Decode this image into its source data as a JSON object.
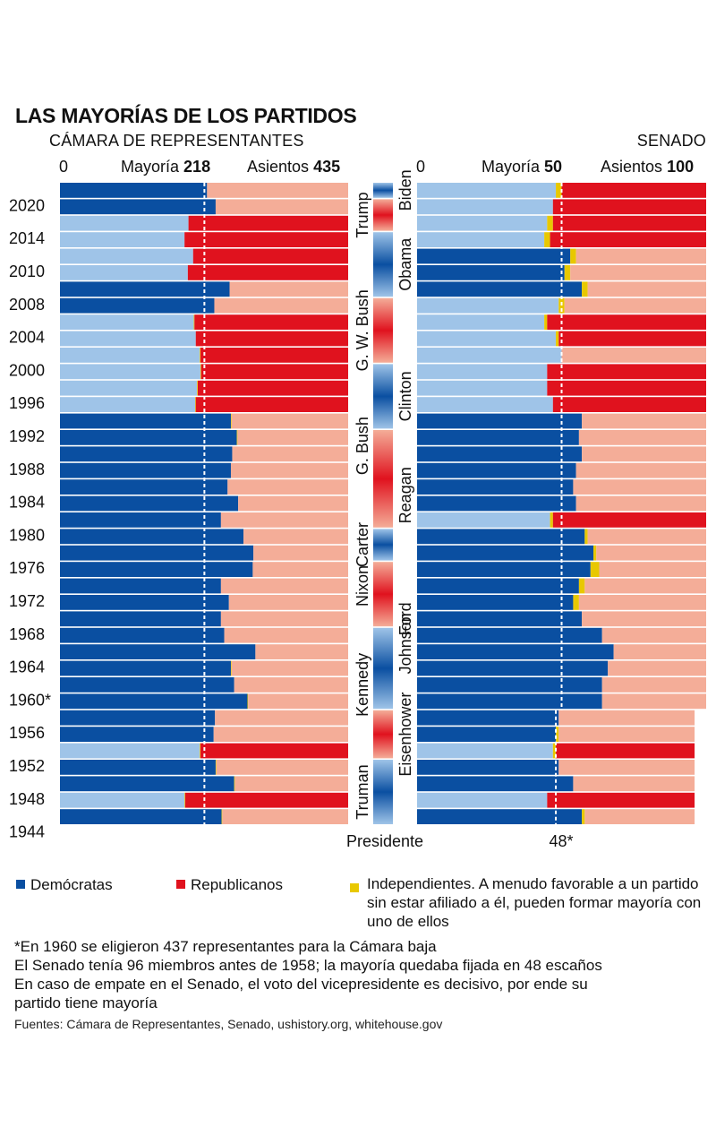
{
  "title": "LAS MAYORÍAS DE LOS PARTIDOS",
  "house": {
    "label": "CÁMARA DE REPRESENTANTES",
    "axis_zero": "0",
    "majority_label": "Mayoría",
    "majority_value": "218",
    "seats_label": "Asientos",
    "seats_value": "435"
  },
  "senate": {
    "label": "SENADO",
    "axis_zero": "0",
    "majority_label": "Mayoría",
    "majority_value": "50",
    "seats_label": "Asientos",
    "seats_value": "100",
    "old_majority_label": "48*"
  },
  "president_axis_label": "Presidente",
  "legend": {
    "dem": "Demócratas",
    "rep": "Republicanos",
    "ind": "Independientes. A menudo favorable a un partido sin estar afiliado a él, pueden formar mayoría con uno de ellos"
  },
  "notes": [
    "*En 1960 se eligieron 437 representantes para la Cámara baja",
    "El Senado tenía 96 miembros antes de 1958; la mayoría quedaba fijada en 48 escaños",
    "En caso de empate en el Senado, el voto del vicepresidente es decisivo, por ende su",
    "partido tiene mayoría"
  ],
  "sources": "Fuentes: Cámara de Representantes, Senado, ushistory.org, whitehouse.gov",
  "colors": {
    "dem_majority": "#0a4fa1",
    "dem_minority": "#9fc4e8",
    "rep_majority": "#e0121e",
    "rep_minority": "#f4ad98",
    "independent": "#e8c800",
    "dem_legend": "#0a4fa1",
    "rep_legend": "#e0121e",
    "ind_legend": "#e8c800"
  },
  "chart_data": {
    "type": "bar",
    "orientation": "horizontal-stacked",
    "title": "LAS MAYORÍAS DE LOS PARTIDOS",
    "year_labels": [
      "2020",
      "2014",
      "2010",
      "2008",
      "2004",
      "2000",
      "1996",
      "1992",
      "1988",
      "1984",
      "1980",
      "1976",
      "1972",
      "1968",
      "1964",
      "1960*",
      "1956",
      "1952",
      "1948",
      "1944"
    ],
    "year_label_rows": [
      1,
      3,
      5,
      7,
      9,
      11,
      13,
      15,
      17,
      19,
      21,
      23,
      25,
      27,
      29,
      31,
      33,
      35,
      37,
      39
    ],
    "rows": [
      {
        "house": [
          222,
          213,
          0
        ],
        "senate": [
          48,
          50,
          2
        ]
      },
      {
        "house": [
          235,
          200,
          0
        ],
        "senate": [
          47,
          53,
          0
        ]
      },
      {
        "house": [
          194,
          241,
          0
        ],
        "senate": [
          45,
          53,
          2
        ]
      },
      {
        "house": [
          188,
          247,
          0
        ],
        "senate": [
          44,
          54,
          2
        ]
      },
      {
        "house": [
          201,
          234,
          0
        ],
        "senate": [
          53,
          45,
          2
        ]
      },
      {
        "house": [
          193,
          242,
          0
        ],
        "senate": [
          51,
          47,
          2
        ]
      },
      {
        "house": [
          256,
          179,
          0
        ],
        "senate": [
          57,
          41,
          2
        ]
      },
      {
        "house": [
          233,
          202,
          0
        ],
        "senate": [
          49,
          49,
          2
        ]
      },
      {
        "house": [
          202,
          232,
          1
        ],
        "senate": [
          44,
          55,
          1
        ]
      },
      {
        "house": [
          205,
          230,
          0
        ],
        "senate": [
          48,
          51,
          1
        ]
      },
      {
        "house": [
          211,
          223,
          1
        ],
        "senate": [
          50,
          50,
          0
        ]
      },
      {
        "house": [
          212,
          222,
          1
        ],
        "senate": [
          45,
          55,
          0
        ]
      },
      {
        "house": [
          207,
          227,
          1
        ],
        "senate": [
          45,
          55,
          0
        ]
      },
      {
        "house": [
          204,
          230,
          1
        ],
        "senate": [
          47,
          53,
          0
        ]
      },
      {
        "house": [
          258,
          176,
          1
        ],
        "senate": [
          57,
          43,
          0
        ]
      },
      {
        "house": [
          267,
          167,
          1
        ],
        "senate": [
          56,
          44,
          0
        ]
      },
      {
        "house": [
          260,
          175,
          0
        ],
        "senate": [
          57,
          43,
          0
        ]
      },
      {
        "house": [
          258,
          177,
          0
        ],
        "senate": [
          55,
          45,
          0
        ]
      },
      {
        "house": [
          253,
          182,
          0
        ],
        "senate": [
          54,
          46,
          0
        ]
      },
      {
        "house": [
          269,
          166,
          0
        ],
        "senate": [
          55,
          45,
          0
        ]
      },
      {
        "house": [
          243,
          192,
          0
        ],
        "senate": [
          46,
          53,
          1
        ]
      },
      {
        "house": [
          277,
          158,
          0
        ],
        "senate": [
          58,
          41,
          1
        ]
      },
      {
        "house": [
          292,
          143,
          0
        ],
        "senate": [
          61,
          38,
          1
        ]
      },
      {
        "house": [
          291,
          144,
          0
        ],
        "senate": [
          60,
          37,
          3
        ]
      },
      {
        "house": [
          243,
          192,
          0
        ],
        "senate": [
          56,
          42,
          2
        ]
      },
      {
        "house": [
          255,
          180,
          0
        ],
        "senate": [
          54,
          44,
          2
        ]
      },
      {
        "house": [
          243,
          192,
          0
        ],
        "senate": [
          57,
          43,
          0
        ]
      },
      {
        "house": [
          248,
          187,
          0
        ],
        "senate": [
          64,
          36,
          0
        ]
      },
      {
        "house": [
          295,
          140,
          0
        ],
        "senate": [
          68,
          32,
          0
        ]
      },
      {
        "house": [
          258,
          176,
          1
        ],
        "senate": [
          66,
          34,
          0
        ]
      },
      {
        "house": [
          263,
          174,
          0
        ],
        "senate": [
          64,
          36,
          0
        ]
      },
      {
        "house": [
          283,
          153,
          1
        ],
        "senate": [
          64,
          34,
          0
        ]
      },
      {
        "house": [
          234,
          201,
          0
        ],
        "senate": [
          49,
          47,
          0
        ]
      },
      {
        "house": [
          232,
          203,
          0
        ],
        "senate": [
          48,
          47,
          1
        ]
      },
      {
        "house": [
          211,
          221,
          1
        ],
        "senate": [
          47,
          48,
          1
        ]
      },
      {
        "house": [
          235,
          199,
          1
        ],
        "senate": [
          49,
          47,
          0
        ]
      },
      {
        "house": [
          263,
          171,
          1
        ],
        "senate": [
          54,
          42,
          0
        ]
      },
      {
        "house": [
          188,
          246,
          1
        ],
        "senate": [
          45,
          51,
          0
        ]
      },
      {
        "house": [
          244,
          190,
          1
        ],
        "senate": [
          57,
          38,
          1
        ]
      }
    ],
    "house_total": 435,
    "house_majority": 218,
    "senate_total": 100,
    "senate_majority": 50,
    "senate_total_pre1958": 96,
    "senate_majority_pre1958": 48,
    "presidents_left": [
      {
        "name": "Trump",
        "party": "R",
        "rows": [
          1,
          2
        ]
      },
      {
        "name": "G. W. Bush",
        "party": "R",
        "rows": [
          7,
          10
        ]
      },
      {
        "name": "G. Bush",
        "party": "R",
        "rows": [
          15,
          16
        ]
      },
      {
        "name": "Carter",
        "party": "D",
        "rows": [
          21,
          22
        ]
      },
      {
        "name": "Nixon",
        "party": "R",
        "rows": [
          23,
          25
        ]
      },
      {
        "name": "Kennedy",
        "party": "D",
        "rows": [
          29,
          31
        ]
      },
      {
        "name": "Truman",
        "party": "D",
        "rows": [
          35,
          38
        ]
      }
    ],
    "presidents_right": [
      {
        "name": "Biden",
        "party": "D",
        "rows": [
          0,
          0
        ]
      },
      {
        "name": "Obama",
        "party": "D",
        "rows": [
          3,
          6
        ]
      },
      {
        "name": "Clinton",
        "party": "D",
        "rows": [
          11,
          14
        ]
      },
      {
        "name": "Reagan",
        "party": "R",
        "rows": [
          17,
          20
        ]
      },
      {
        "name": "Ford",
        "party": "R",
        "rows": [
          26,
          26
        ]
      },
      {
        "name": "Johnson",
        "party": "D",
        "rows": [
          27,
          28
        ]
      },
      {
        "name": "Eisenhower",
        "party": "R",
        "rows": [
          32,
          34
        ]
      }
    ],
    "president_strip": [
      {
        "party": "D",
        "rows": [
          0,
          0
        ]
      },
      {
        "party": "R",
        "rows": [
          1,
          2
        ]
      },
      {
        "party": "D",
        "rows": [
          3,
          6
        ]
      },
      {
        "party": "R",
        "rows": [
          7,
          10
        ]
      },
      {
        "party": "D",
        "rows": [
          11,
          14
        ]
      },
      {
        "party": "R",
        "rows": [
          15,
          20
        ]
      },
      {
        "party": "D",
        "rows": [
          21,
          22
        ]
      },
      {
        "party": "R",
        "rows": [
          23,
          26
        ]
      },
      {
        "party": "D",
        "rows": [
          27,
          31
        ]
      },
      {
        "party": "R",
        "rows": [
          32,
          34
        ]
      },
      {
        "party": "D",
        "rows": [
          35,
          38
        ]
      }
    ]
  }
}
